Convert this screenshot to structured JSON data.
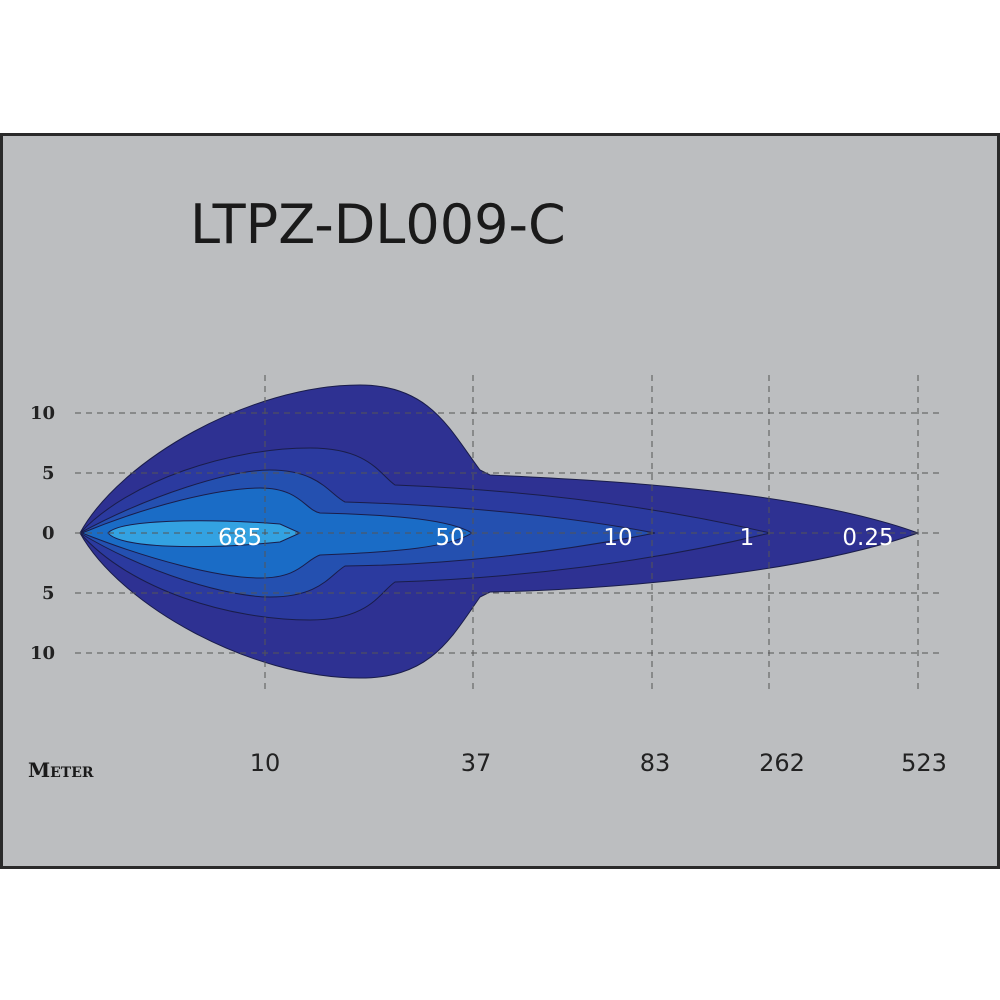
{
  "header": {
    "title": "LTPZ-DL009-C"
  },
  "y_axis": {
    "labels": [
      "10",
      "5",
      "0",
      "5",
      "10"
    ]
  },
  "x_axis": {
    "title": "Meter",
    "labels": [
      "10",
      "37",
      "83",
      "262",
      "523"
    ]
  },
  "zones": {
    "labels": [
      "685",
      "50",
      "10",
      "1",
      "0.25"
    ]
  }
}
